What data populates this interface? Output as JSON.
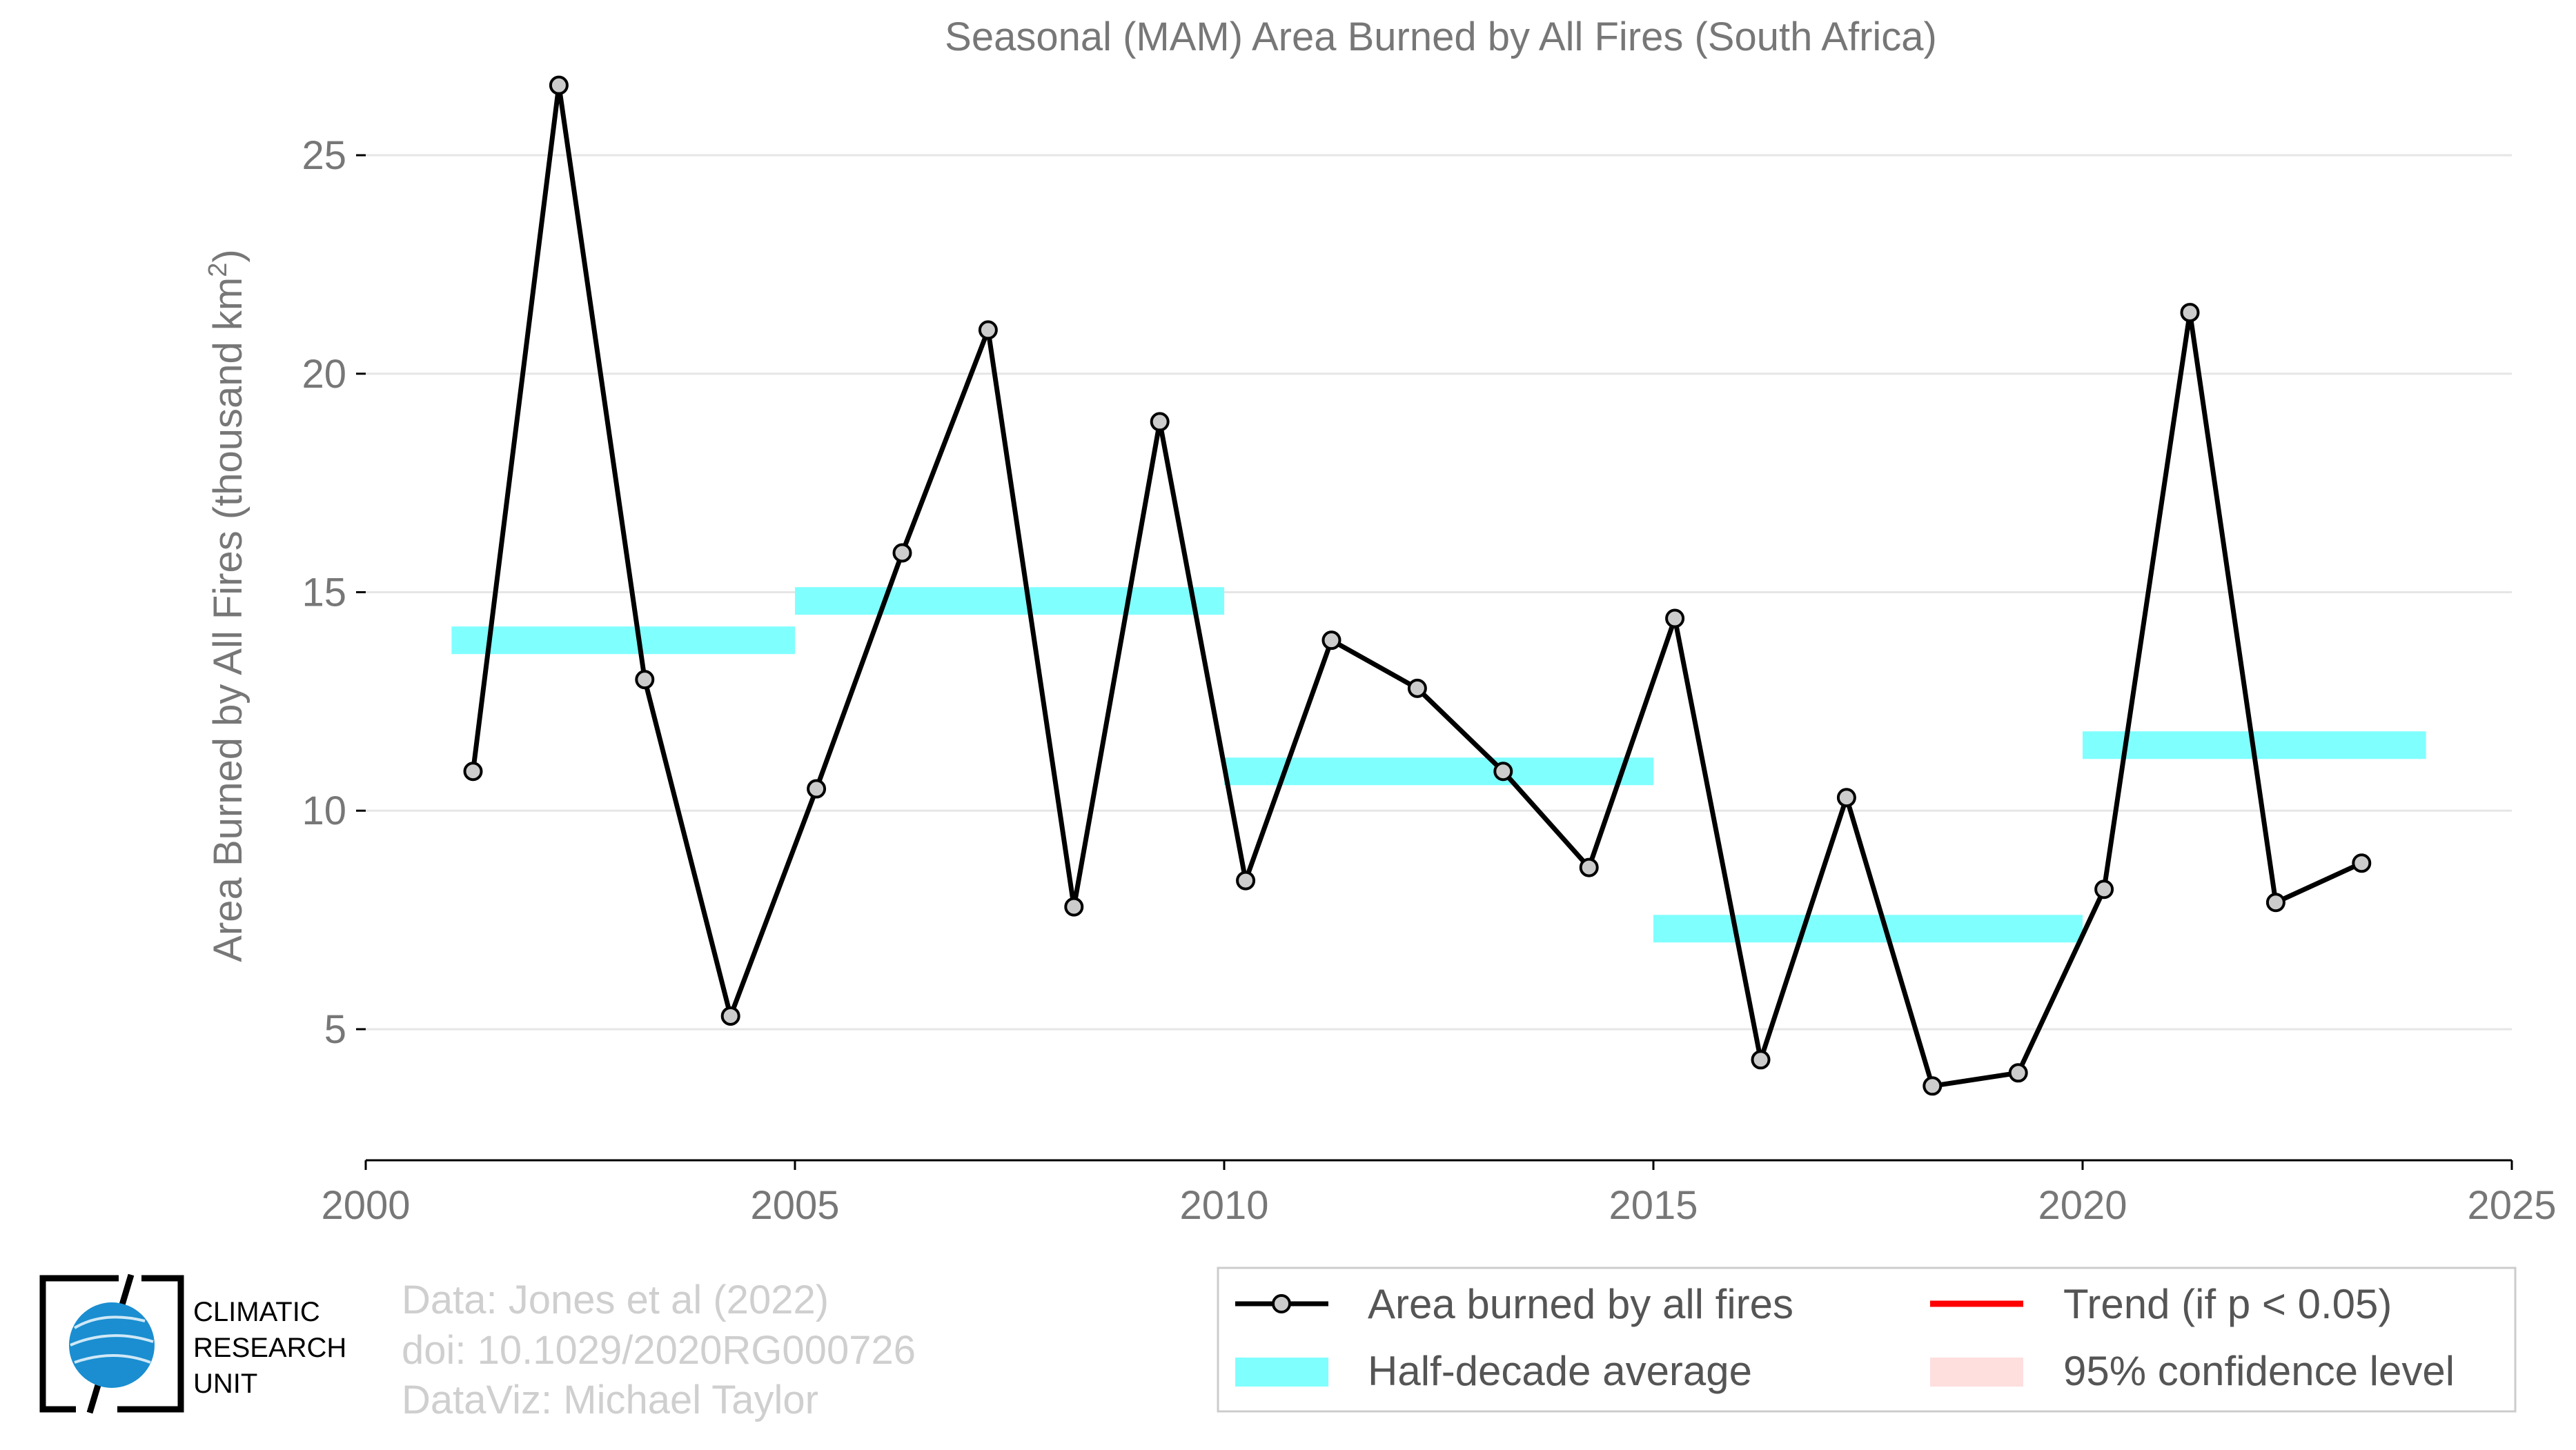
{
  "chart_data": {
    "type": "line",
    "title": "Seasonal (MAM) Area Burned by All Fires (South Africa)",
    "ylabel": "Area Burned by All Fires (thousand km",
    "ylabel_sup": "2",
    "ylabel_close": ")",
    "xlim": [
      2000,
      2025
    ],
    "ylim": [
      2,
      26.5
    ],
    "x_ticks": [
      2000,
      2005,
      2010,
      2015,
      2020,
      2025
    ],
    "y_ticks": [
      5,
      10,
      15,
      20,
      25
    ],
    "grid": true,
    "series": [
      {
        "name": "Area burned by all fires",
        "color": "#000000",
        "marker_fill": "#cccccc",
        "x": [
          2001.25,
          2002.25,
          2003.25,
          2004.25,
          2005.25,
          2006.25,
          2007.25,
          2008.25,
          2009.25,
          2010.25,
          2011.25,
          2012.25,
          2013.25,
          2014.25,
          2015.25,
          2016.25,
          2017.25,
          2018.25,
          2019.25,
          2020.25,
          2021.25,
          2022.25,
          2023.25
        ],
        "values": [
          10.9,
          26.6,
          13.0,
          5.3,
          10.5,
          15.9,
          21.0,
          7.8,
          18.9,
          8.4,
          13.9,
          12.8,
          10.9,
          8.7,
          14.4,
          4.3,
          10.3,
          3.7,
          4.0,
          8.2,
          21.4,
          7.9,
          8.8
        ]
      }
    ],
    "half_decade_average": {
      "name": "Half-decade average",
      "color": "#80ffff",
      "segments": [
        {
          "x0": 2001,
          "x1": 2005,
          "value": 13.9
        },
        {
          "x0": 2005,
          "x1": 2010,
          "value": 14.8
        },
        {
          "x0": 2010,
          "x1": 2015,
          "value": 10.9
        },
        {
          "x0": 2015,
          "x1": 2020,
          "value": 7.3
        },
        {
          "x0": 2020,
          "x1": 2024,
          "value": 11.5
        }
      ]
    },
    "legend": {
      "placement": "bottom-right",
      "entries": [
        {
          "label": "Area burned by all fires",
          "kind": "line-marker",
          "color": "#000000"
        },
        {
          "label": "Trend (if p < 0.05)",
          "kind": "line",
          "color": "#ff0000"
        },
        {
          "label": "Half-decade average",
          "kind": "band",
          "color": "#80ffff"
        },
        {
          "label": "95% confidence level",
          "kind": "band",
          "color": "#ffdede"
        }
      ]
    }
  },
  "credits": {
    "line1": "Data: Jones et al (2022)",
    "line2": "doi: 10.1029/2020RG000726",
    "line3": "DataViz: Michael Taylor"
  },
  "logo": {
    "line1": "CLIMATIC",
    "line2": "RESEARCH",
    "line3": "UNIT"
  }
}
